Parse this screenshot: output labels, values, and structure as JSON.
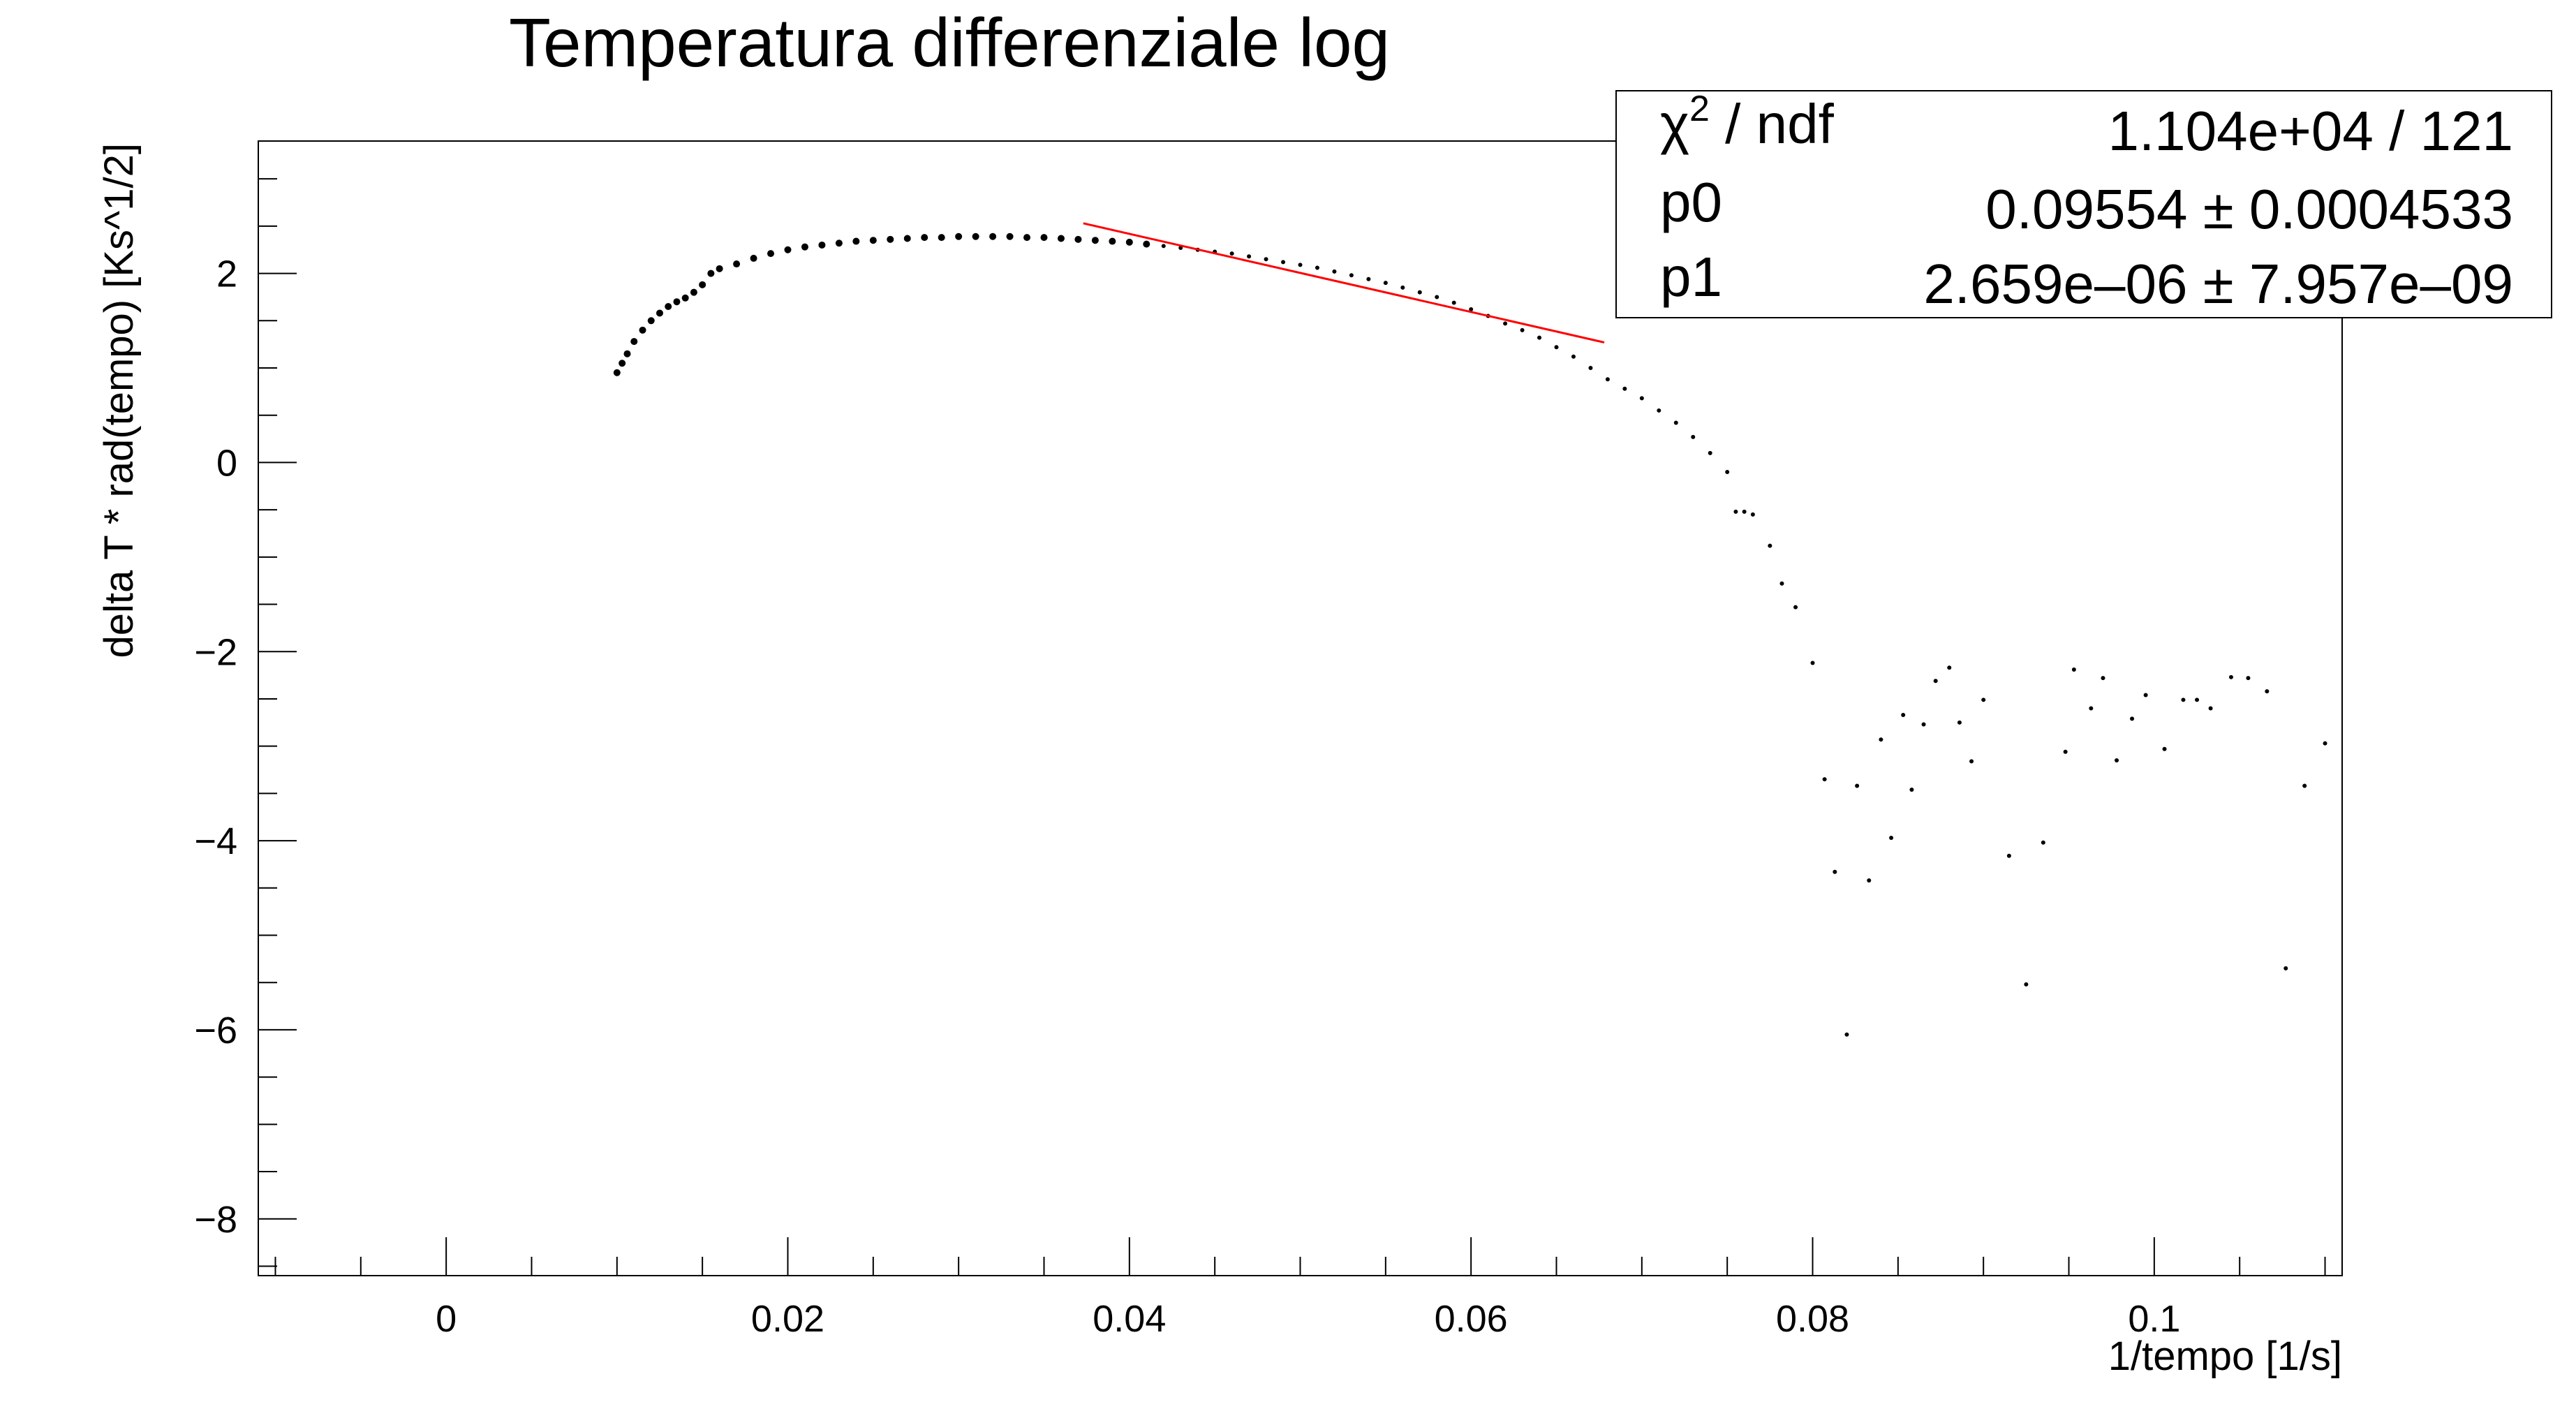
{
  "chart_data": {
    "type": "scatter",
    "title": "Temperatura differenziale log",
    "xlabel": "1/tempo [1/s]",
    "ylabel": "delta T * rad(tempo) [Ks^1/2]",
    "xlim": [
      -0.011,
      0.111
    ],
    "ylim": [
      -8.6,
      3.4
    ],
    "x_ticks": [
      0,
      0.02,
      0.04,
      0.06,
      0.08,
      0.1
    ],
    "x_tick_labels": [
      "0",
      "0.02",
      "0.04",
      "0.06",
      "0.08",
      "0.1"
    ],
    "y_ticks": [
      2,
      0,
      -2,
      -4,
      -6,
      -8
    ],
    "y_tick_labels": [
      "2",
      "0",
      "−2",
      "−4",
      "−6",
      "−8"
    ],
    "grid": false,
    "legend": "none",
    "fit_line": {
      "color": "#ff0000",
      "x": [
        0.0373,
        0.0678
      ],
      "y": [
        2.53,
        1.27
      ]
    },
    "series": [
      {
        "color": "#000000",
        "points": [
          [
            0.01,
            0.95
          ],
          [
            0.0103,
            1.05
          ],
          [
            0.0106,
            1.15
          ],
          [
            0.011,
            1.28
          ],
          [
            0.0115,
            1.4
          ],
          [
            0.012,
            1.5
          ],
          [
            0.0125,
            1.58
          ],
          [
            0.013,
            1.65
          ],
          [
            0.0135,
            1.7
          ],
          [
            0.014,
            1.74
          ],
          [
            0.0145,
            1.8
          ],
          [
            0.015,
            1.88
          ],
          [
            0.0155,
            2.0
          ],
          [
            0.016,
            2.05
          ],
          [
            0.017,
            2.1
          ],
          [
            0.018,
            2.16
          ],
          [
            0.019,
            2.21
          ],
          [
            0.02,
            2.25
          ],
          [
            0.021,
            2.28
          ],
          [
            0.022,
            2.3
          ],
          [
            0.023,
            2.32
          ],
          [
            0.024,
            2.34
          ],
          [
            0.025,
            2.35
          ],
          [
            0.026,
            2.36
          ],
          [
            0.027,
            2.37
          ],
          [
            0.028,
            2.38
          ],
          [
            0.029,
            2.38
          ],
          [
            0.03,
            2.39
          ],
          [
            0.031,
            2.39
          ],
          [
            0.032,
            2.39
          ],
          [
            0.033,
            2.39
          ],
          [
            0.034,
            2.38
          ],
          [
            0.035,
            2.38
          ],
          [
            0.036,
            2.37
          ],
          [
            0.037,
            2.36
          ],
          [
            0.038,
            2.35
          ],
          [
            0.039,
            2.34
          ],
          [
            0.04,
            2.33
          ],
          [
            0.041,
            2.31
          ],
          [
            0.042,
            2.29
          ],
          [
            0.043,
            2.27
          ],
          [
            0.044,
            2.25
          ],
          [
            0.045,
            2.23
          ],
          [
            0.046,
            2.21
          ],
          [
            0.047,
            2.18
          ],
          [
            0.048,
            2.15
          ],
          [
            0.049,
            2.12
          ],
          [
            0.05,
            2.09
          ],
          [
            0.051,
            2.06
          ],
          [
            0.052,
            2.02
          ],
          [
            0.053,
            1.98
          ],
          [
            0.054,
            1.94
          ],
          [
            0.055,
            1.9
          ],
          [
            0.056,
            1.85
          ],
          [
            0.057,
            1.8
          ],
          [
            0.058,
            1.75
          ],
          [
            0.059,
            1.69
          ],
          [
            0.06,
            1.62
          ],
          [
            0.061,
            1.55
          ],
          [
            0.062,
            1.47
          ],
          [
            0.063,
            1.4
          ],
          [
            0.064,
            1.32
          ],
          [
            0.065,
            1.22
          ],
          [
            0.066,
            1.12
          ],
          [
            0.067,
            1.0
          ],
          [
            0.068,
            0.88
          ],
          [
            0.069,
            0.78
          ],
          [
            0.07,
            0.68
          ],
          [
            0.071,
            0.55
          ],
          [
            0.072,
            0.42
          ],
          [
            0.073,
            0.27
          ],
          [
            0.074,
            0.1
          ],
          [
            0.075,
            -0.1
          ],
          [
            0.0755,
            -0.52
          ],
          [
            0.076,
            -0.52
          ],
          [
            0.0765,
            -0.55
          ],
          [
            0.0775,
            -0.88
          ],
          [
            0.0782,
            -1.28
          ],
          [
            0.079,
            -1.53
          ],
          [
            0.08,
            -2.12
          ],
          [
            0.0807,
            -3.35
          ],
          [
            0.0813,
            -4.33
          ],
          [
            0.082,
            -6.05
          ],
          [
            0.0826,
            -3.42
          ],
          [
            0.0833,
            -4.42
          ],
          [
            0.084,
            -2.93
          ],
          [
            0.0846,
            -3.97
          ],
          [
            0.0853,
            -2.67
          ],
          [
            0.0858,
            -3.46
          ],
          [
            0.0865,
            -2.77
          ],
          [
            0.0872,
            -2.31
          ],
          [
            0.088,
            -2.17
          ],
          [
            0.0886,
            -2.75
          ],
          [
            0.0893,
            -3.16
          ],
          [
            0.09,
            -2.51
          ],
          [
            0.0915,
            -4.16
          ],
          [
            0.0925,
            -5.52
          ],
          [
            0.0935,
            -4.02
          ],
          [
            0.0948,
            -3.06
          ],
          [
            0.0953,
            -2.19
          ],
          [
            0.0963,
            -2.6
          ],
          [
            0.097,
            -2.28
          ],
          [
            0.0978,
            -3.15
          ],
          [
            0.0987,
            -2.71
          ],
          [
            0.0995,
            -2.46
          ],
          [
            0.1006,
            -3.03
          ],
          [
            0.1017,
            -2.51
          ],
          [
            0.1025,
            -2.51
          ],
          [
            0.1033,
            -2.6
          ],
          [
            0.1045,
            -2.27
          ],
          [
            0.1055,
            -2.28
          ],
          [
            0.1066,
            -2.42
          ],
          [
            0.1077,
            -5.35
          ],
          [
            0.1088,
            -3.42
          ],
          [
            0.11,
            -2.97
          ]
        ]
      }
    ]
  },
  "stats_box": {
    "rows": [
      {
        "label_sym": "χ",
        "label_sup": "2",
        "label_rest": " / ndf",
        "value": "1.104e+04 / 121"
      },
      {
        "label_sym": "p0",
        "label_sup": "",
        "label_rest": "",
        "value": "0.09554 ± 0.0004533"
      },
      {
        "label_sym": "p1",
        "label_sup": "",
        "label_rest": "",
        "value": "2.659e–06 ± 7.957e–09"
      }
    ]
  }
}
